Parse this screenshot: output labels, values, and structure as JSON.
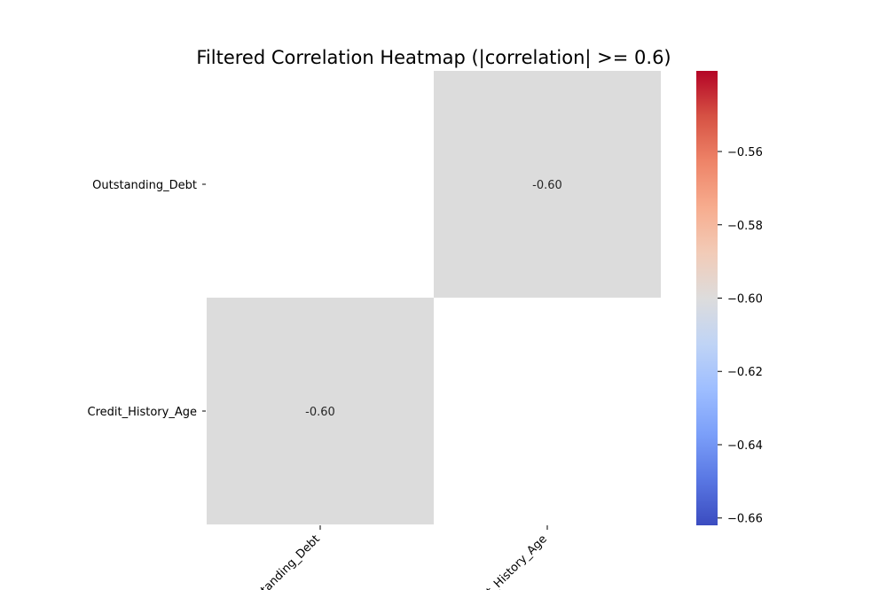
{
  "chart_data": {
    "type": "heatmap",
    "title": "Filtered Correlation Heatmap (|correlation| >= 0.6)",
    "row_labels": [
      "Outstanding_Debt",
      "Credit_History_Age"
    ],
    "col_labels": [
      "Outstanding_Debt",
      "Credit_History_Age"
    ],
    "cells": [
      {
        "row": 0,
        "col": 0,
        "value": null,
        "label": ""
      },
      {
        "row": 0,
        "col": 1,
        "value": -0.6,
        "label": "-0.60"
      },
      {
        "row": 1,
        "col": 0,
        "value": -0.6,
        "label": "-0.60"
      },
      {
        "row": 1,
        "col": 1,
        "value": null,
        "label": ""
      }
    ],
    "colorbar": {
      "colormap": "coolwarm",
      "range": [
        -0.662,
        -0.538
      ],
      "ticks": [
        -0.56,
        -0.58,
        -0.6,
        -0.62,
        -0.64,
        -0.66
      ],
      "tick_labels": [
        "−0.56",
        "−0.58",
        "−0.60",
        "−0.62",
        "−0.64",
        "−0.66"
      ]
    },
    "colors": {
      "cell_fill": "#dcdcdc",
      "cmap_stops": [
        "#3b4cc0",
        "#5977e3",
        "#7b9ff9",
        "#9ebeff",
        "#c0d4f5",
        "#dddcdc",
        "#f2cbb7",
        "#f7ac8e",
        "#ee8468",
        "#d65244",
        "#b40426"
      ]
    }
  }
}
